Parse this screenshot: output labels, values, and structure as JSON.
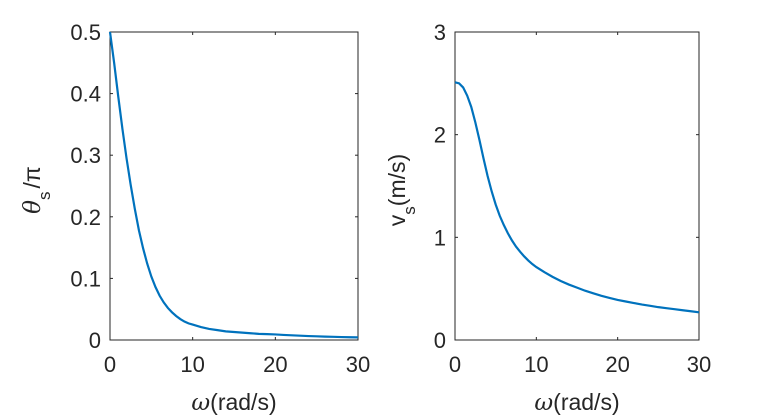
{
  "chart_data": [
    {
      "type": "line",
      "title": "",
      "xlabel": {
        "symbol": "ω",
        "text": "(rad/s)"
      },
      "ylabel": {
        "symbol": "θ",
        "subscript": "s",
        "suffix": "/π"
      },
      "xlim": [
        0,
        30
      ],
      "ylim": [
        0,
        0.5
      ],
      "xticks": [
        0,
        10,
        20,
        30
      ],
      "yticks": [
        0,
        0.1,
        0.2,
        0.3,
        0.4,
        0.5
      ],
      "xtick_labels": [
        "0",
        "10",
        "20",
        "30"
      ],
      "ytick_labels": [
        "0",
        "0.1",
        "0.2",
        "0.3",
        "0.4",
        "0.5"
      ],
      "grid": false,
      "series": [
        {
          "name": "theta_s/pi",
          "color": "#0072BD",
          "x": [
            0,
            0.5,
            1,
            1.5,
            2,
            2.5,
            3,
            3.5,
            4,
            4.5,
            5,
            5.5,
            6,
            6.5,
            7,
            7.5,
            8,
            8.5,
            9,
            9.5,
            10,
            11,
            12,
            13,
            14,
            15,
            16,
            17,
            18,
            19,
            20,
            21,
            22,
            23,
            24,
            25,
            26,
            27,
            28,
            29,
            30
          ],
          "y": [
            0.5,
            0.45,
            0.395,
            0.343,
            0.295,
            0.252,
            0.213,
            0.178,
            0.149,
            0.124,
            0.103,
            0.086,
            0.072,
            0.061,
            0.052,
            0.045,
            0.039,
            0.034,
            0.03,
            0.027,
            0.025,
            0.021,
            0.018,
            0.016,
            0.014,
            0.013,
            0.012,
            0.011,
            0.01,
            0.0095,
            0.009,
            0.0082,
            0.0076,
            0.007,
            0.0064,
            0.006,
            0.0055,
            0.0052,
            0.0048,
            0.0045,
            0.0042
          ]
        }
      ]
    },
    {
      "type": "line",
      "title": "",
      "xlabel": {
        "symbol": "ω",
        "text": "(rad/s)"
      },
      "ylabel": {
        "symbol": "v",
        "subscript": "s",
        "suffix": "(m/s)"
      },
      "xlim": [
        0,
        30
      ],
      "ylim": [
        0,
        3
      ],
      "xticks": [
        0,
        10,
        20,
        30
      ],
      "yticks": [
        0,
        1,
        2,
        3
      ],
      "xtick_labels": [
        "0",
        "10",
        "20",
        "30"
      ],
      "ytick_labels": [
        "0",
        "1",
        "2",
        "3"
      ],
      "grid": false,
      "series": [
        {
          "name": "v_s",
          "color": "#0072BD",
          "x": [
            0,
            0.5,
            1,
            1.5,
            2,
            2.5,
            3,
            3.5,
            4,
            4.5,
            5,
            5.5,
            6,
            6.5,
            7,
            7.5,
            8,
            8.5,
            9,
            9.5,
            10,
            11,
            12,
            13,
            14,
            15,
            16,
            17,
            18,
            19,
            20,
            21,
            22,
            23,
            24,
            25,
            26,
            27,
            28,
            29,
            30
          ],
          "y": [
            2.51,
            2.5,
            2.46,
            2.38,
            2.27,
            2.12,
            1.95,
            1.77,
            1.6,
            1.45,
            1.32,
            1.21,
            1.12,
            1.04,
            0.97,
            0.91,
            0.86,
            0.815,
            0.775,
            0.74,
            0.71,
            0.66,
            0.615,
            0.575,
            0.54,
            0.51,
            0.48,
            0.455,
            0.43,
            0.41,
            0.39,
            0.375,
            0.36,
            0.345,
            0.333,
            0.32,
            0.31,
            0.3,
            0.29,
            0.28,
            0.27
          ]
        }
      ]
    }
  ]
}
